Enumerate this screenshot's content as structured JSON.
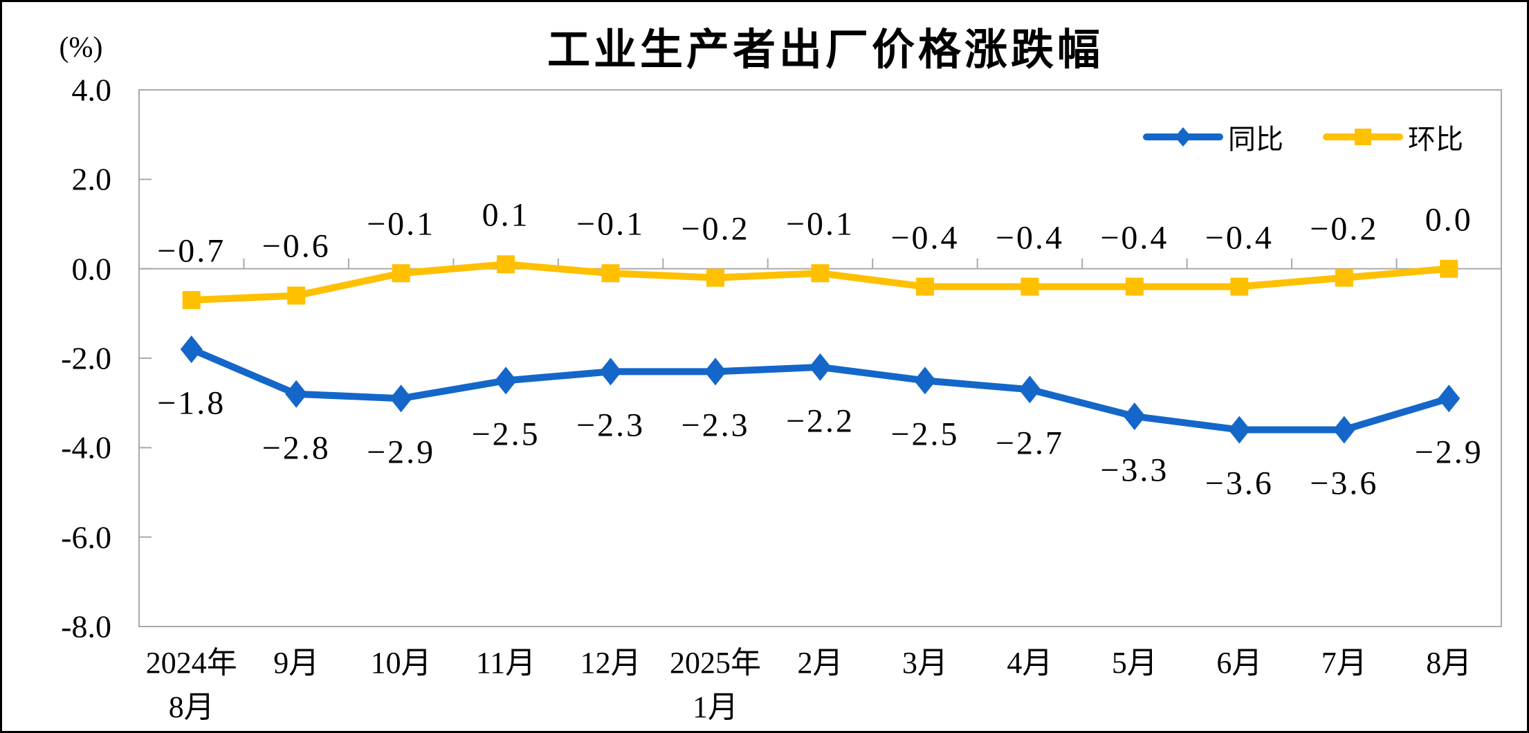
{
  "chart_data": {
    "type": "line",
    "title": "工业生产者出厂价格涨跌幅",
    "unit_label": "(%)",
    "ylim": [
      -8.0,
      4.0
    ],
    "yticks": [
      4.0,
      2.0,
      0.0,
      -2.0,
      -4.0,
      -6.0,
      -8.0
    ],
    "ytick_labels": [
      "4.0",
      "2.0",
      "0.0",
      "-2.0",
      "-4.0",
      "-6.0",
      "-8.0"
    ],
    "grid": false,
    "legend_position": "top-right-inside",
    "axis_line_color": "#A9A9A9",
    "categories": [
      [
        "2024年",
        "8月"
      ],
      [
        "9月"
      ],
      [
        "10月"
      ],
      [
        "11月"
      ],
      [
        "12月"
      ],
      [
        "2025年",
        "1月"
      ],
      [
        "2月"
      ],
      [
        "3月"
      ],
      [
        "4月"
      ],
      [
        "5月"
      ],
      [
        "6月"
      ],
      [
        "7月"
      ],
      [
        "8月"
      ]
    ],
    "series": [
      {
        "name": "同比",
        "marker": "diamond",
        "color": "#1467C9",
        "label_side": "below",
        "values": [
          -1.8,
          -2.8,
          -2.9,
          -2.5,
          -2.3,
          -2.3,
          -2.2,
          -2.5,
          -2.7,
          -3.3,
          -3.6,
          -3.6,
          -2.9
        ],
        "labels": [
          "-1.8",
          "-2.8",
          "-2.9",
          "-2.5",
          "-2.3",
          "-2.3",
          "-2.2",
          "-2.5",
          "-2.7",
          "-3.3",
          "-3.6",
          "-3.6",
          "-2.9"
        ]
      },
      {
        "name": "环比",
        "marker": "square",
        "color": "#FFC000",
        "label_side": "above",
        "values": [
          -0.7,
          -0.6,
          -0.1,
          0.1,
          -0.1,
          -0.2,
          -0.1,
          -0.4,
          -0.4,
          -0.4,
          -0.4,
          -0.2,
          0.0
        ],
        "labels": [
          "-0.7",
          "-0.6",
          "-0.1",
          "0.1",
          "-0.1",
          "-0.2",
          "-0.1",
          "-0.4",
          "-0.4",
          "-0.4",
          "-0.4",
          "-0.2",
          "0.0"
        ]
      }
    ]
  }
}
